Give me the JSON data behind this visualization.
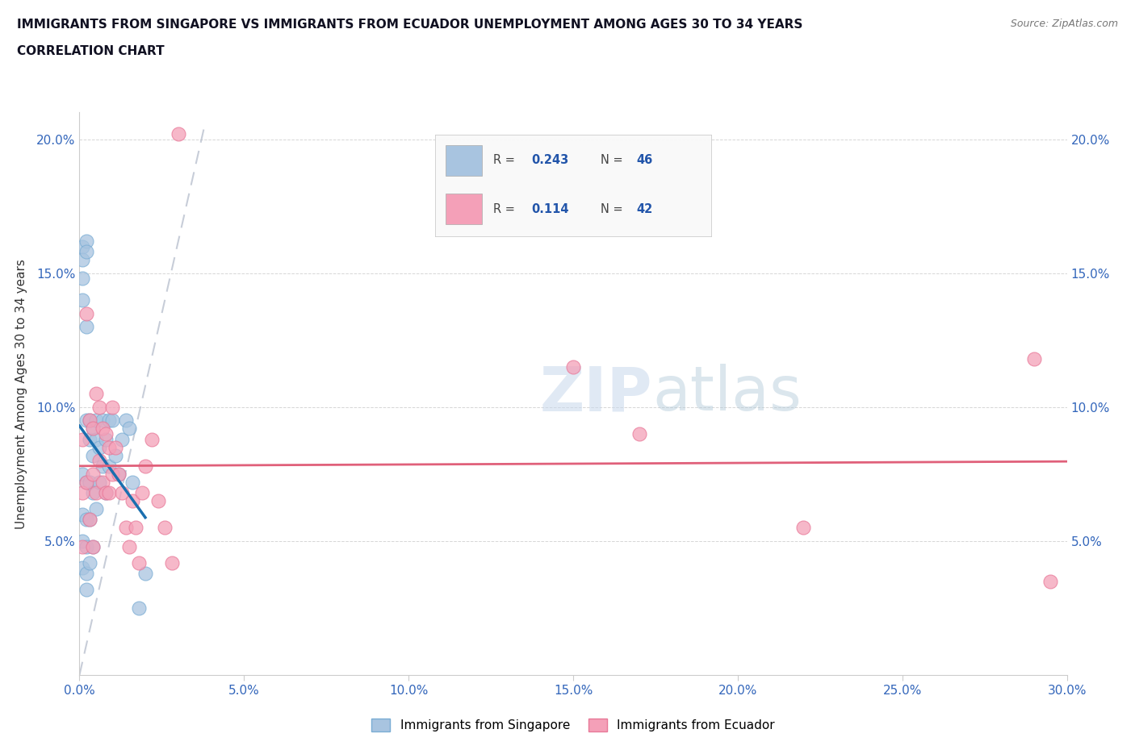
{
  "title_line1": "IMMIGRANTS FROM SINGAPORE VS IMMIGRANTS FROM ECUADOR UNEMPLOYMENT AMONG AGES 30 TO 34 YEARS",
  "title_line2": "CORRELATION CHART",
  "source_text": "Source: ZipAtlas.com",
  "ylabel": "Unemployment Among Ages 30 to 34 years",
  "xlim": [
    0.0,
    0.3
  ],
  "ylim": [
    0.0,
    0.21
  ],
  "xticks": [
    0.0,
    0.05,
    0.1,
    0.15,
    0.2,
    0.25,
    0.3
  ],
  "yticks": [
    0.0,
    0.05,
    0.1,
    0.15,
    0.2
  ],
  "xtick_labels": [
    "0.0%",
    "5.0%",
    "10.0%",
    "15.0%",
    "20.0%",
    "25.0%",
    "30.0%"
  ],
  "ytick_labels": [
    "",
    "5.0%",
    "10.0%",
    "15.0%",
    "20.0%"
  ],
  "singapore_color": "#a8c4e0",
  "singapore_edge_color": "#7aadd4",
  "ecuador_color": "#f4a0b8",
  "ecuador_edge_color": "#e87898",
  "singapore_line_color": "#1a6faf",
  "ecuador_line_color": "#e0607a",
  "R_singapore": 0.243,
  "N_singapore": 46,
  "R_ecuador": 0.114,
  "N_ecuador": 42,
  "singapore_x": [
    0.001,
    0.001,
    0.001,
    0.001,
    0.001,
    0.001,
    0.001,
    0.001,
    0.002,
    0.002,
    0.002,
    0.002,
    0.002,
    0.002,
    0.002,
    0.002,
    0.002,
    0.003,
    0.003,
    0.003,
    0.003,
    0.003,
    0.004,
    0.004,
    0.004,
    0.004,
    0.005,
    0.005,
    0.005,
    0.006,
    0.006,
    0.007,
    0.007,
    0.008,
    0.008,
    0.009,
    0.009,
    0.01,
    0.011,
    0.012,
    0.013,
    0.014,
    0.015,
    0.016,
    0.018,
    0.02
  ],
  "singapore_y": [
    0.16,
    0.155,
    0.148,
    0.14,
    0.075,
    0.06,
    0.05,
    0.04,
    0.162,
    0.158,
    0.13,
    0.095,
    0.072,
    0.058,
    0.048,
    0.038,
    0.032,
    0.095,
    0.088,
    0.072,
    0.058,
    0.042,
    0.092,
    0.082,
    0.068,
    0.048,
    0.095,
    0.088,
    0.062,
    0.085,
    0.072,
    0.095,
    0.078,
    0.088,
    0.068,
    0.095,
    0.078,
    0.095,
    0.082,
    0.075,
    0.088,
    0.095,
    0.092,
    0.072,
    0.025,
    0.038
  ],
  "ecuador_x": [
    0.001,
    0.001,
    0.001,
    0.002,
    0.002,
    0.003,
    0.003,
    0.004,
    0.004,
    0.004,
    0.005,
    0.005,
    0.006,
    0.006,
    0.007,
    0.007,
    0.008,
    0.008,
    0.009,
    0.009,
    0.01,
    0.01,
    0.011,
    0.012,
    0.013,
    0.014,
    0.015,
    0.016,
    0.017,
    0.018,
    0.019,
    0.02,
    0.022,
    0.024,
    0.026,
    0.028,
    0.03,
    0.15,
    0.17,
    0.22,
    0.29,
    0.295
  ],
  "ecuador_y": [
    0.088,
    0.068,
    0.048,
    0.135,
    0.072,
    0.095,
    0.058,
    0.092,
    0.075,
    0.048,
    0.105,
    0.068,
    0.1,
    0.08,
    0.092,
    0.072,
    0.09,
    0.068,
    0.085,
    0.068,
    0.1,
    0.075,
    0.085,
    0.075,
    0.068,
    0.055,
    0.048,
    0.065,
    0.055,
    0.042,
    0.068,
    0.078,
    0.088,
    0.065,
    0.055,
    0.042,
    0.202,
    0.115,
    0.09,
    0.055,
    0.118,
    0.035
  ],
  "gray_line_x": [
    0.0,
    0.038
  ],
  "gray_line_y": [
    0.0,
    0.205
  ]
}
